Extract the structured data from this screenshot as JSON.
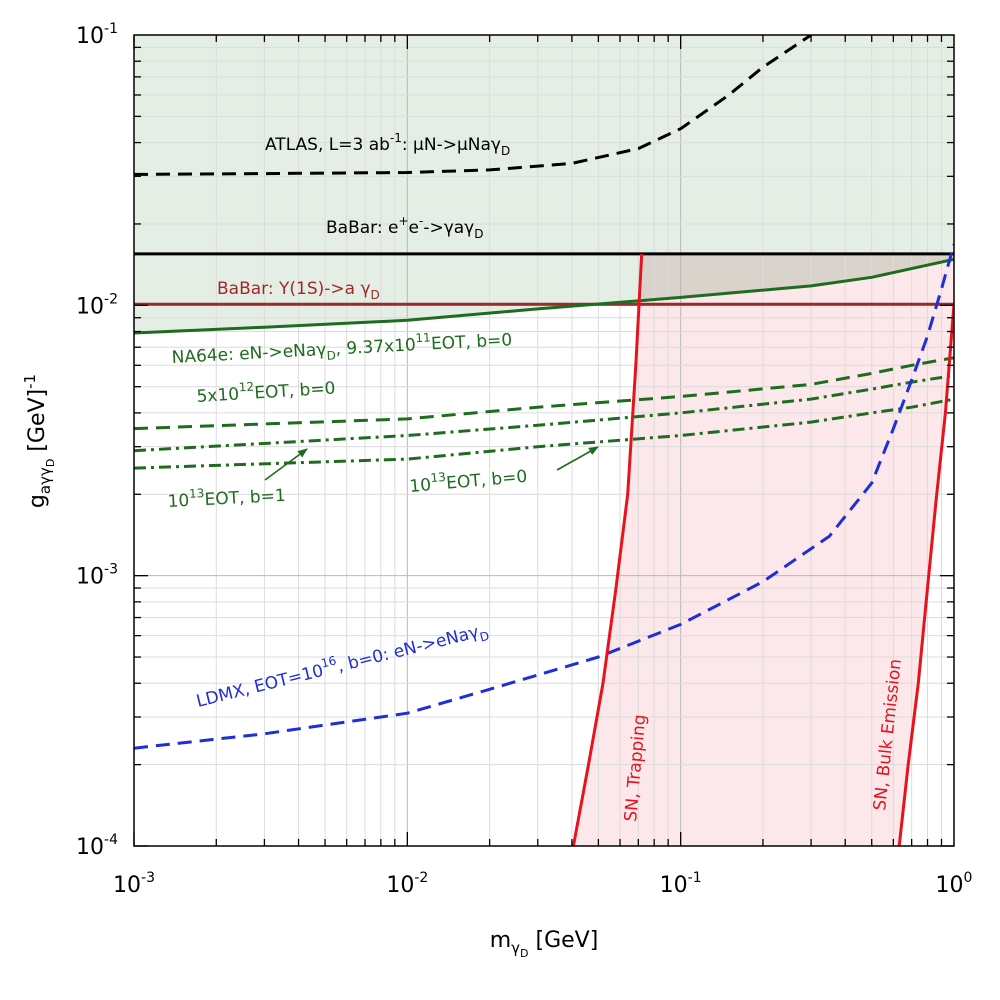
{
  "chart_data": {
    "type": "line",
    "scale": {
      "x": "log",
      "y": "log"
    },
    "xlim": [
      0.001,
      1
    ],
    "ylim": [
      0.0001,
      0.1
    ],
    "xlabel": {
      "base": "m",
      "sub": "γ",
      "subsub": "D",
      "unit": " [GeV]"
    },
    "ylabel": {
      "base": "g",
      "sub": "aγγ",
      "subsub": "D",
      "unit": " [GeV]",
      "sup": "-1"
    },
    "xticks": [
      {
        "value": 0.001,
        "base": "10",
        "exp": "-3"
      },
      {
        "value": 0.01,
        "base": "10",
        "exp": "-2"
      },
      {
        "value": 0.1,
        "base": "10",
        "exp": "-1"
      },
      {
        "value": 1,
        "base": "10",
        "exp": "0"
      }
    ],
    "yticks": [
      {
        "value": 0.0001,
        "base": "10",
        "exp": "-4"
      },
      {
        "value": 0.001,
        "base": "10",
        "exp": "-3"
      },
      {
        "value": 0.01,
        "base": "10",
        "exp": "-2"
      },
      {
        "value": 0.1,
        "base": "10",
        "exp": "-1"
      }
    ],
    "series": [
      {
        "name": "ATLAS",
        "color": "#000000",
        "style": "dashed",
        "x": [
          0.001,
          0.003,
          0.01,
          0.02,
          0.04,
          0.07,
          0.1,
          0.15,
          0.2,
          0.3
        ],
        "y": [
          0.0305,
          0.0307,
          0.031,
          0.0317,
          0.0335,
          0.038,
          0.045,
          0.06,
          0.076,
          0.1
        ]
      },
      {
        "name": "BaBar e+e-",
        "color": "#000000",
        "style": "solid",
        "x": [
          0.001,
          1
        ],
        "y": [
          0.0155,
          0.0155
        ]
      },
      {
        "name": "BaBar Y(1S)",
        "color": "#9b2a2a",
        "style": "solid",
        "x": [
          0.001,
          1
        ],
        "y": [
          0.0101,
          0.0101
        ]
      },
      {
        "name": "NA64e 9.37e11",
        "color": "#1f6b1f",
        "style": "solid",
        "x": [
          0.001,
          0.003,
          0.01,
          0.03,
          0.1,
          0.3,
          0.5,
          1
        ],
        "y": [
          0.0079,
          0.0083,
          0.0088,
          0.0097,
          0.0107,
          0.0118,
          0.0127,
          0.0148
        ]
      },
      {
        "name": "5e12 EOT b=0",
        "color": "#1f6b1f",
        "style": "dashed",
        "x": [
          0.001,
          0.01,
          0.03,
          0.1,
          0.3,
          0.5,
          0.7,
          1
        ],
        "y": [
          0.0035,
          0.0038,
          0.0042,
          0.0046,
          0.0051,
          0.0056,
          0.006,
          0.0064
        ]
      },
      {
        "name": "1e13 EOT b=1",
        "color": "#1f6b1f",
        "style": "dashdot",
        "x": [
          0.001,
          0.01,
          0.03,
          0.1,
          0.3,
          0.5,
          0.7,
          1
        ],
        "y": [
          0.0029,
          0.0033,
          0.0036,
          0.004,
          0.0045,
          0.0049,
          0.0052,
          0.0055
        ]
      },
      {
        "name": "1e13 EOT b=0",
        "color": "#1f6b1f",
        "style": "dashdot",
        "x": [
          0.001,
          0.01,
          0.03,
          0.1,
          0.3,
          0.5,
          0.7,
          1
        ],
        "y": [
          0.0025,
          0.0027,
          0.003,
          0.0033,
          0.0037,
          0.004,
          0.0042,
          0.0045
        ]
      },
      {
        "name": "LDMX",
        "color": "#1f2ed6",
        "style": "dashed",
        "x": [
          0.001,
          0.003,
          0.01,
          0.02,
          0.05,
          0.1,
          0.2,
          0.35,
          0.5,
          0.6,
          0.7,
          0.8,
          0.9,
          1
        ],
        "y": [
          0.00023,
          0.00026,
          0.00031,
          0.00038,
          0.0005,
          0.00066,
          0.00095,
          0.0014,
          0.0022,
          0.0035,
          0.0053,
          0.0077,
          0.0115,
          0.0168
        ]
      },
      {
        "name": "SN, Trapping",
        "color": "#e8121d",
        "style": "solid",
        "x": [
          0.0405,
          0.046,
          0.052,
          0.058,
          0.064,
          0.0685,
          0.072
        ],
        "y": [
          0.0001,
          0.0002,
          0.0004,
          0.0009,
          0.002,
          0.006,
          0.0155
        ]
      },
      {
        "name": "SN, Bulk Emission",
        "color": "#e8121d",
        "style": "solid",
        "x": [
          0.63,
          0.68,
          0.74,
          0.8,
          0.86,
          0.93,
          1
        ],
        "y": [
          0.0001,
          0.0002,
          0.0004,
          0.0009,
          0.0019,
          0.004,
          0.0101
        ]
      }
    ],
    "regions": [
      {
        "name": "excluded-top",
        "color": "#e4eee4"
      },
      {
        "name": "excluded-na64",
        "color": "#e4eee4"
      },
      {
        "name": "excluded-sn",
        "color": "#fce7ea"
      },
      {
        "name": "sn-overlap",
        "color": "#d9d3cc"
      }
    ],
    "annotations": [
      {
        "id": "atlas",
        "color": "#000000",
        "parts": [
          [
            "ATLAS, L=3 ab",
            ""
          ],
          [
            "-1",
            "sup"
          ],
          [
            ": μN->μNaγ",
            ""
          ],
          [
            "D",
            "sub"
          ]
        ]
      },
      {
        "id": "babar1",
        "color": "#000000",
        "parts": [
          [
            "BaBar: e",
            ""
          ],
          [
            "+",
            "sup"
          ],
          [
            "e",
            ""
          ],
          [
            "-",
            "sup"
          ],
          [
            "->γaγ",
            ""
          ],
          [
            "D",
            "sub"
          ]
        ]
      },
      {
        "id": "babar2",
        "color": "#9b2a2a",
        "parts": [
          [
            "BaBar: Υ(1S)->a γ",
            ""
          ],
          [
            "D",
            "sub"
          ]
        ]
      },
      {
        "id": "na64",
        "color": "#1f6b1f",
        "parts": [
          [
            "NA64e: eN->eNaγ",
            ""
          ],
          [
            "D",
            "sub"
          ],
          [
            ", 9.37x10",
            ""
          ],
          [
            "11",
            "sup"
          ],
          [
            "EOT, b=0",
            ""
          ]
        ]
      },
      {
        "id": "eot5",
        "color": "#1f6b1f",
        "parts": [
          [
            "5x10",
            ""
          ],
          [
            "12",
            "sup"
          ],
          [
            "EOT, b=0",
            ""
          ]
        ]
      },
      {
        "id": "eot13b1",
        "color": "#1f6b1f",
        "parts": [
          [
            "10",
            ""
          ],
          [
            "13",
            "sup"
          ],
          [
            "EOT, b=1",
            ""
          ]
        ]
      },
      {
        "id": "eot13b0",
        "color": "#1f6b1f",
        "parts": [
          [
            "10",
            ""
          ],
          [
            "13",
            "sup"
          ],
          [
            "EOT, b=0",
            ""
          ]
        ]
      },
      {
        "id": "ldmx",
        "color": "#1f2ed6",
        "parts": [
          [
            "LDMX, EOT=10",
            ""
          ],
          [
            "16",
            "sup"
          ],
          [
            ", b=0: eN->eNaγ",
            ""
          ],
          [
            "D",
            "sub"
          ]
        ]
      },
      {
        "id": "sntrap",
        "color": "#e8121d",
        "parts": [
          [
            "SN, Trapping",
            ""
          ]
        ]
      },
      {
        "id": "snbulk",
        "color": "#e8121d",
        "parts": [
          [
            "SN, Bulk Emission",
            ""
          ]
        ]
      }
    ]
  }
}
